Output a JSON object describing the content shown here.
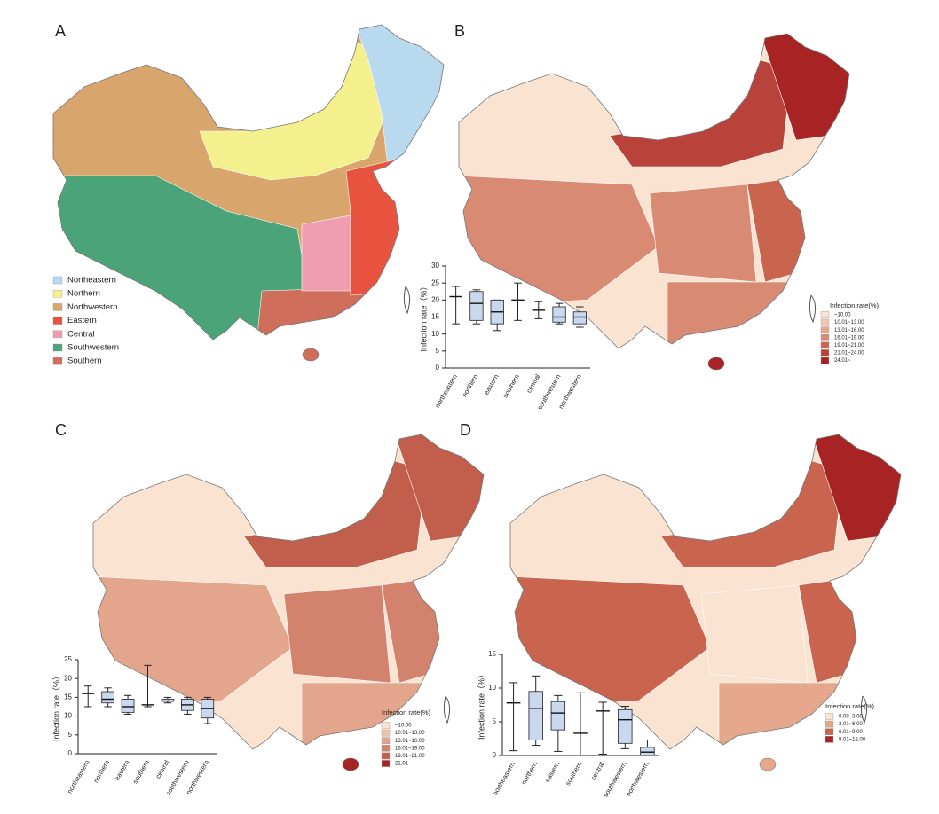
{
  "panels": [
    {
      "label": "A",
      "legend": {
        "items": [
          {
            "name": "Northeastern",
            "color": "#b9d9ee"
          },
          {
            "name": "Northern",
            "color": "#f4f08e"
          },
          {
            "name": "Northwestern",
            "color": "#d8a56c"
          },
          {
            "name": "Eastern",
            "color": "#e8533f"
          },
          {
            "name": "Central",
            "color": "#ee9eb0"
          },
          {
            "name": "Southwestern",
            "color": "#4ba37a"
          },
          {
            "name": "Southern",
            "color": "#cf6e5a"
          }
        ]
      }
    },
    {
      "label": "B",
      "legend": {
        "title": "Infection rate(%)",
        "items": [
          {
            "name": "~10.00",
            "color": "#fbe3d2"
          },
          {
            "name": "10.01~13.00",
            "color": "#f2c6aa"
          },
          {
            "name": "13.01~16.00",
            "color": "#e6a88c"
          },
          {
            "name": "16.01~19.00",
            "color": "#d88a72"
          },
          {
            "name": "19.01~21.00",
            "color": "#c9644f"
          },
          {
            "name": "21.01~24.00",
            "color": "#b9433a"
          },
          {
            "name": "24.01~",
            "color": "#a82424"
          }
        ]
      }
    },
    {
      "label": "C",
      "legend": {
        "title": "Infection rate(%)",
        "items": [
          {
            "name": "~10.00",
            "color": "#fbe3d2"
          },
          {
            "name": "10.01~13.00",
            "color": "#f0c4aa"
          },
          {
            "name": "13.01~16.00",
            "color": "#e3a58b"
          },
          {
            "name": "16.01~19.00",
            "color": "#d3826d"
          },
          {
            "name": "19.01~21.00",
            "color": "#c15e4c"
          },
          {
            "name": "21.01~",
            "color": "#a82424"
          }
        ]
      }
    },
    {
      "label": "D",
      "legend": {
        "title": "Infection rate(%)",
        "items": [
          {
            "name": "0.00~3.00",
            "color": "#fbe3d2"
          },
          {
            "name": "3.01~6.00",
            "color": "#e6a88c"
          },
          {
            "name": "6.01~9.00",
            "color": "#c9644f"
          },
          {
            "name": "9.01~12.00",
            "color": "#a82424"
          }
        ]
      }
    }
  ],
  "chart_data": [
    {
      "type": "box",
      "ylabel": "Infection rate（%）",
      "ylim": [
        0,
        30
      ],
      "yticks": [
        0,
        5,
        10,
        15,
        20,
        25,
        30
      ],
      "categories": [
        "northeastern",
        "northern",
        "eastern",
        "southern",
        "central",
        "southwestern",
        "northwestern"
      ],
      "min": [
        13,
        13,
        11,
        14,
        14.5,
        13,
        12
      ],
      "q1": [
        21,
        14,
        13,
        20,
        17,
        13.5,
        13
      ],
      "median": [
        21,
        19,
        16.5,
        20,
        17,
        15,
        15
      ],
      "q3": [
        21,
        22.5,
        20,
        20,
        17,
        18,
        16.5
      ],
      "max": [
        24,
        23,
        20,
        25,
        19.5,
        19,
        18
      ],
      "color": "#c9d8ee"
    },
    {
      "type": "box",
      "ylabel": "Infection rate（%）",
      "ylim": [
        0,
        25
      ],
      "yticks": [
        0,
        5,
        10,
        15,
        20,
        25
      ],
      "categories": [
        "northeastern",
        "northern",
        "eastern",
        "southern",
        "central",
        "southwestern",
        "northwestern"
      ],
      "min": [
        12.5,
        12.5,
        10.5,
        12.5,
        13.5,
        10.5,
        8
      ],
      "q1": [
        16,
        13.5,
        11,
        13,
        14,
        11.5,
        9.5
      ],
      "median": [
        16,
        14.5,
        12.5,
        13,
        14,
        13,
        12
      ],
      "q3": [
        16,
        16.5,
        14.5,
        13,
        14.5,
        14.5,
        14.5
      ],
      "max": [
        18,
        17.5,
        15.5,
        23.5,
        15,
        15,
        15
      ],
      "color": "#c9d8ee"
    },
    {
      "type": "box",
      "ylabel": "Infection rate（%）",
      "ylim": [
        0,
        15
      ],
      "yticks": [
        0,
        5,
        10,
        15
      ],
      "categories": [
        "northeastern",
        "northern",
        "eastern",
        "southern",
        "central",
        "southwestern",
        "northwestern"
      ],
      "min": [
        0.7,
        1.5,
        0.6,
        0,
        0.2,
        1,
        0
      ],
      "q1": [
        7.8,
        2.3,
        3.8,
        3.3,
        6.6,
        1.8,
        0
      ],
      "median": [
        7.8,
        7,
        6.3,
        3.3,
        6.6,
        5.3,
        0.5
      ],
      "q3": [
        7.8,
        9.5,
        8,
        3.3,
        6.6,
        6.8,
        1.2
      ],
      "max": [
        10.8,
        11.8,
        8.9,
        9.3,
        7.9,
        7.3,
        2.3
      ],
      "color": "#c9d8ee"
    }
  ]
}
